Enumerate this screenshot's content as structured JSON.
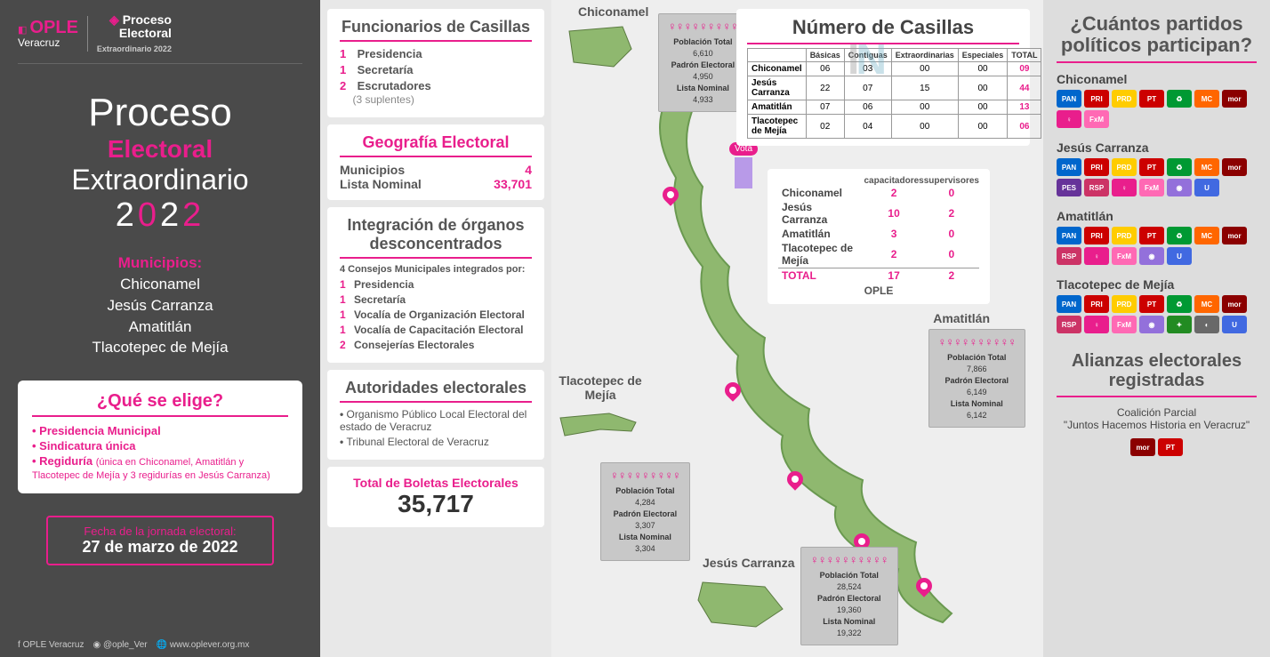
{
  "colors": {
    "pink": "#e91e8c",
    "dark": "#4a4a4a",
    "grey": "#555555"
  },
  "logos": {
    "ople": "OPLE",
    "ople_sub": "Veracruz",
    "proceso": "Proceso",
    "electoral": "Electoral",
    "extra": "Extraordinario 2022"
  },
  "title": {
    "l1": "Proceso",
    "l2": "Electoral",
    "l3": "Extraordinario",
    "year_prefix": "2",
    "year_mid": "0",
    "year_mid2": "2",
    "year_suffix": "2"
  },
  "municipios_hdr": "Municipios:",
  "municipios": [
    "Chiconamel",
    "Jesús Carranza",
    "Amatitlán",
    "Tlacotepec de Mejía"
  ],
  "que_elige": {
    "title": "¿Qué se elige?",
    "items": [
      {
        "t": "Presidencia Municipal"
      },
      {
        "t": "Sindicatura única"
      },
      {
        "t": "Regiduría",
        "sub": "(única en Chiconamel, Amatitlán y Tlacotepec de Mejía y 3 regidurías en Jesús Carranza)"
      }
    ]
  },
  "fecha": {
    "lbl": "Fecha de la jornada electoral:",
    "val": "27 de marzo de 2022"
  },
  "footer": [
    "OPLE Veracruz",
    "@ople_Ver",
    "www.oplever.org.mx"
  ],
  "funcionarios": {
    "title": "Funcionarios de Casillas",
    "items": [
      {
        "n": "1",
        "t": "Presidencia"
      },
      {
        "n": "1",
        "t": "Secretaría"
      },
      {
        "n": "2",
        "t": "Escrutadores",
        "note": "(3 suplentes)"
      }
    ]
  },
  "geografia": {
    "title": "Geografía Electoral",
    "rows": [
      {
        "k": "Municipios",
        "v": "4"
      },
      {
        "k": "Lista Nominal",
        "v": "33,701"
      }
    ]
  },
  "integracion": {
    "title": "Integración de órganos desconcentrados",
    "intro": "4 Consejos Municipales integrados por:",
    "items": [
      {
        "n": "1",
        "t": "Presidencia"
      },
      {
        "n": "1",
        "t": "Secretaría"
      },
      {
        "n": "1",
        "t": "Vocalía de Organización Electoral"
      },
      {
        "n": "1",
        "t": "Vocalía de Capacitación Electoral"
      },
      {
        "n": "2",
        "t": "Consejerías Electorales"
      }
    ]
  },
  "autoridades": {
    "title": "Autoridades electorales",
    "items": [
      "Organismo Público Local Electoral del estado de Veracruz",
      "Tribunal Electoral de Veracruz"
    ]
  },
  "boletas": {
    "lbl": "Total de Boletas Electorales",
    "val": "35,717"
  },
  "casillas": {
    "title": "Número de Casillas",
    "headers": [
      "",
      "Básicas",
      "Contiguas",
      "Extraordinarias",
      "Especiales",
      "TOTAL"
    ],
    "rows": [
      {
        "m": "Chiconamel",
        "b": "06",
        "c": "03",
        "e": "00",
        "s": "00",
        "t": "09"
      },
      {
        "m": "Jesús Carranza",
        "b": "22",
        "c": "07",
        "e": "15",
        "s": "00",
        "t": "44"
      },
      {
        "m": "Amatitlán",
        "b": "07",
        "c": "06",
        "e": "00",
        "s": "00",
        "t": "13"
      },
      {
        "m": "Tlacotepec de Mejía",
        "b": "02",
        "c": "04",
        "e": "00",
        "s": "00",
        "t": "06"
      }
    ]
  },
  "capacitadores": {
    "headers": [
      "",
      "capacitadores",
      "supervisores"
    ],
    "rows": [
      {
        "m": "Chiconamel",
        "c": "2",
        "s": "0"
      },
      {
        "m": "Jesús Carranza",
        "c": "10",
        "s": "2"
      },
      {
        "m": "Amatitlán",
        "c": "3",
        "s": "0"
      },
      {
        "m": "Tlacotepec de Mejía",
        "c": "2",
        "s": "0"
      }
    ],
    "total": {
      "m": "TOTAL",
      "c": "17",
      "s": "2"
    },
    "ople": "OPLE"
  },
  "pop_boxes": {
    "chiconamel": {
      "label": "Chiconamel",
      "pob": "6,610",
      "padron": "4,950",
      "lista": "4,933",
      "people": 9
    },
    "tlacotepec": {
      "label": "Tlacotepec de Mejía",
      "pob": "4,284",
      "padron": "3,307",
      "lista": "3,304",
      "people": 9
    },
    "jesus": {
      "label": "Jesús Carranza",
      "pob": "28,524",
      "padron": "19,360",
      "lista": "19,322",
      "people": 10
    },
    "amatitlan": {
      "label": "Amatitlán",
      "pob": "7,866",
      "padron": "6,149",
      "lista": "6,142",
      "people": 10
    }
  },
  "pop_labels": {
    "pob": "Población Total",
    "padron": "Padrón Electoral",
    "lista": "Lista Nominal"
  },
  "right": {
    "title": "¿Cuántos partidos políticos participan?",
    "party_defs": {
      "PAN": {
        "bg": "#0066cc",
        "tx": "PAN"
      },
      "PRI": {
        "bg": "#cc0000",
        "tx": "PRI"
      },
      "PRD": {
        "bg": "#ffcc00",
        "tx": "PRD"
      },
      "PT": {
        "bg": "#cc0000",
        "tx": "PT"
      },
      "PVEM": {
        "bg": "#009933",
        "tx": "♻"
      },
      "MC": {
        "bg": "#ff6600",
        "tx": "MC"
      },
      "MORENA": {
        "bg": "#8b0000",
        "tx": "mor"
      },
      "PES": {
        "bg": "#663399",
        "tx": "PES"
      },
      "RSP": {
        "bg": "#cc3366",
        "tx": "RSP"
      },
      "PINK": {
        "bg": "#e91e8c",
        "tx": "♀"
      },
      "FXM": {
        "bg": "#ff69b4",
        "tx": "FxM"
      },
      "PV": {
        "bg": "#9370db",
        "tx": "◉"
      },
      "UNI": {
        "bg": "#4169e1",
        "tx": "U"
      },
      "TOD": {
        "bg": "#228b22",
        "tx": "✦"
      },
      "PC": {
        "bg": "#696969",
        "tx": "◐"
      }
    },
    "groups": [
      {
        "name": "Chiconamel",
        "parties": [
          "PAN",
          "PRI",
          "PRD",
          "PT",
          "PVEM",
          "MC",
          "MORENA",
          "PINK",
          "FXM"
        ]
      },
      {
        "name": "Jesús Carranza",
        "parties": [
          "PAN",
          "PRI",
          "PRD",
          "PT",
          "PVEM",
          "MC",
          "MORENA",
          "PES",
          "RSP",
          "PINK",
          "FXM",
          "PV",
          "UNI"
        ]
      },
      {
        "name": "Amatitlán",
        "parties": [
          "PAN",
          "PRI",
          "PRD",
          "PT",
          "PVEM",
          "MC",
          "MORENA",
          "RSP",
          "PINK",
          "FXM",
          "PV",
          "UNI"
        ]
      },
      {
        "name": "Tlacotepec de Mejía",
        "parties": [
          "PAN",
          "PRI",
          "PRD",
          "PT",
          "PVEM",
          "MC",
          "MORENA",
          "RSP",
          "PINK",
          "FXM",
          "PV",
          "TOD",
          "PC",
          "UNI"
        ]
      }
    ],
    "alianzas": {
      "title": "Alianzas electorales registradas",
      "coal_lbl": "Coalición Parcial",
      "coal_name": "\"Juntos Hacemos Historia en Veracruz\"",
      "parties": [
        "MORENA",
        "PT"
      ]
    }
  },
  "vota": "Vota"
}
